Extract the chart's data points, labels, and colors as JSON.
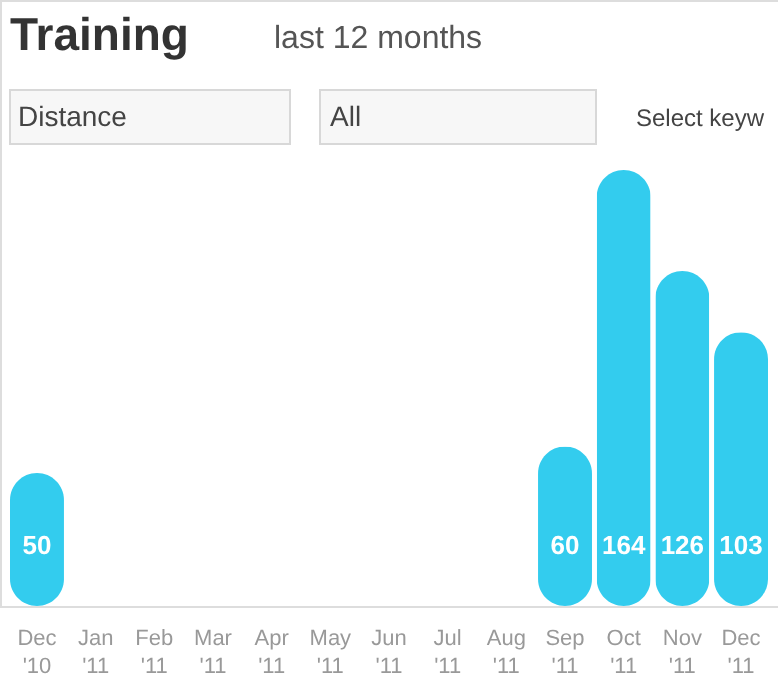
{
  "chart_data": {
    "type": "bar",
    "title": "Training",
    "subtitle": "last 12 months",
    "annotations": [
      "Distance",
      "All",
      "Select keyw"
    ],
    "categories": [
      "Dec '10",
      "Jan '11",
      "Feb '11",
      "Mar '11",
      "Apr '11",
      "May '11",
      "Jun '11",
      "Jul '11",
      "Aug '11",
      "Sep '11",
      "Oct '11",
      "Nov '11",
      "Dec '11"
    ],
    "values": [
      50,
      0,
      0,
      0,
      0,
      0,
      0,
      0,
      0,
      60,
      164,
      126,
      103
    ],
    "value_labels": [
      "50",
      null,
      null,
      null,
      null,
      null,
      null,
      null,
      null,
      "60",
      "164",
      "126",
      "103"
    ],
    "color": "#33ccee",
    "ylim": [
      0,
      164
    ],
    "grid": false,
    "tick_labels": "x"
  }
}
